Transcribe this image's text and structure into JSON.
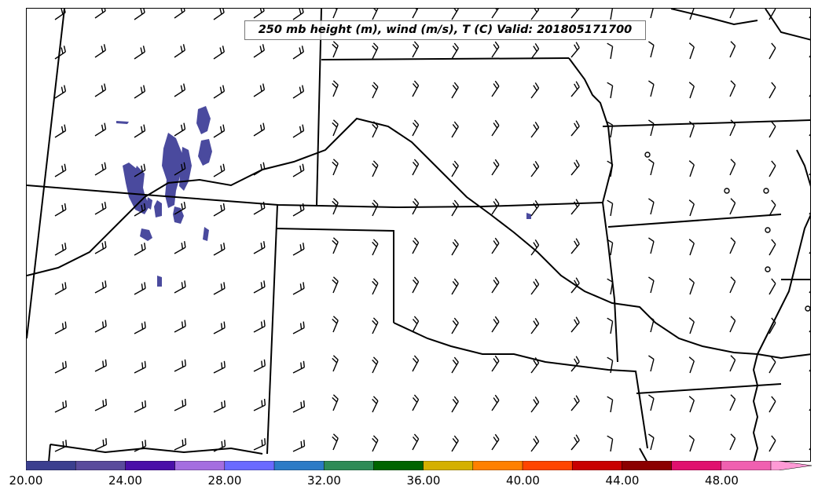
{
  "map": {
    "title": "250 mb height (m), wind (m/s), T (C) Valid: 201805171700"
  },
  "colorbar": {
    "colors": [
      "#3b3f8f",
      "#5a4b9c",
      "#4a0fa8",
      "#a46ee0",
      "#6a6aff",
      "#2c7bc6",
      "#2e8b57",
      "#006400",
      "#d4b000",
      "#ff8000",
      "#ff4500",
      "#c80000",
      "#8b0000",
      "#e0106e",
      "#f060b0",
      "#ff9ad6"
    ],
    "tick_labels": [
      "20.00",
      "24.00",
      "28.00",
      "32.00",
      "36.00",
      "40.00",
      "44.00",
      "48.00"
    ]
  },
  "icons": {
    "wind_barb": "wind-barb-icon",
    "calm_wind": "calm-circle-icon"
  },
  "shading_color": "#4a4a9e"
}
